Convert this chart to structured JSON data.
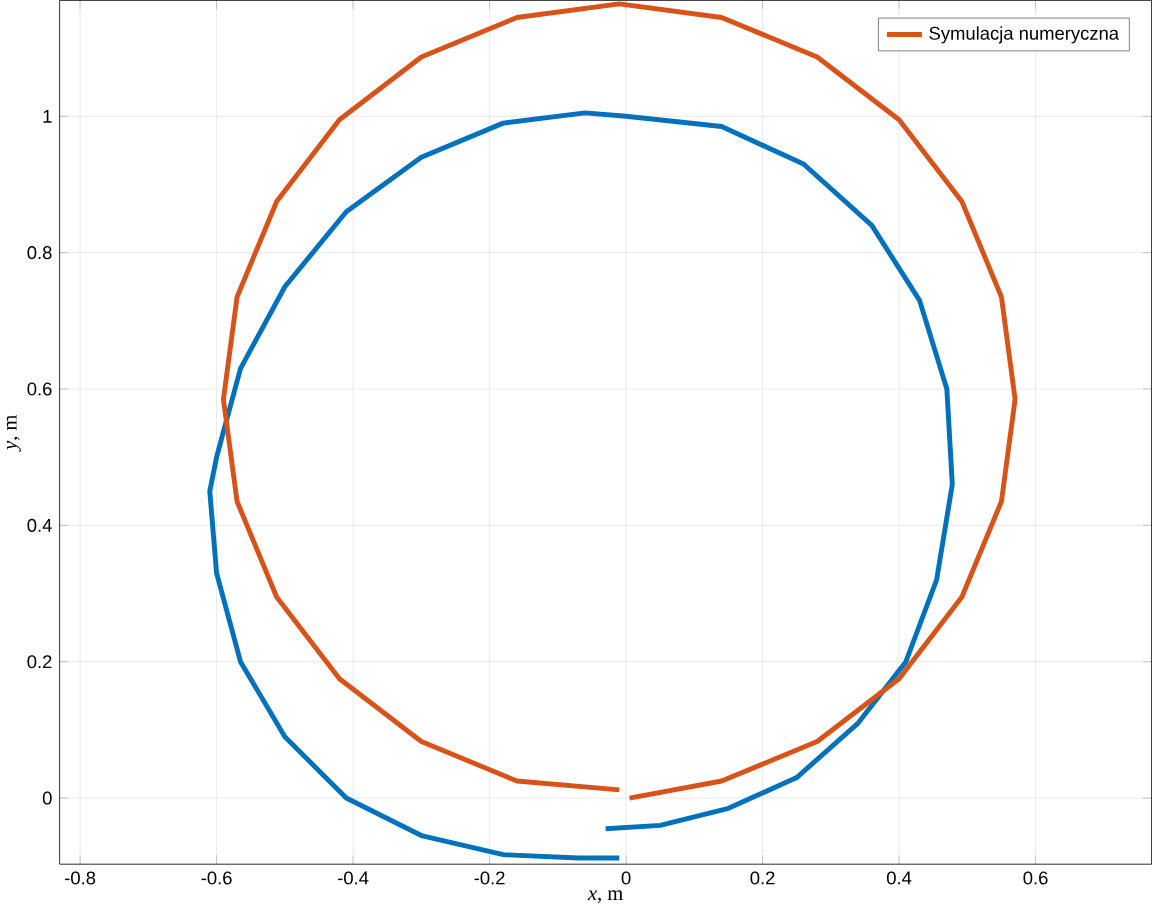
{
  "chart_data": {
    "type": "line",
    "xlabel": "*x*, m",
    "ylabel": "*y*, m",
    "xlim": [
      -0.83,
      0.77
    ],
    "ylim": [
      -0.097,
      1.17
    ],
    "xticks": [
      -0.8,
      -0.6,
      -0.4,
      -0.2,
      0,
      0.2,
      0.4,
      0.6
    ],
    "yticks": [
      0,
      0.2,
      0.4,
      0.6,
      0.8,
      1
    ],
    "grid": true,
    "legend": "top right",
    "line_style": "solid",
    "marker": "none",
    "series": [
      {
        "color": "#0072bd",
        "x": [
          -0.03,
          0.05,
          0.15,
          0.25,
          0.34,
          0.41,
          0.455,
          0.478,
          0.47,
          0.43,
          0.36,
          0.26,
          0.14,
          0.0,
          -0.06,
          -0.18,
          -0.3,
          -0.41,
          -0.5,
          -0.565,
          -0.6,
          -0.61,
          -0.6,
          -0.565,
          -0.5,
          -0.41,
          -0.3,
          -0.18,
          -0.07,
          -0.01
        ],
        "values": [
          -0.045,
          -0.04,
          -0.015,
          0.03,
          0.11,
          0.2,
          0.32,
          0.46,
          0.6,
          0.73,
          0.84,
          0.93,
          0.985,
          1.0,
          1.005,
          0.99,
          0.94,
          0.86,
          0.75,
          0.63,
          0.5,
          0.45,
          0.33,
          0.2,
          0.09,
          0.0,
          -0.055,
          -0.083,
          -0.088,
          -0.088
        ]
      },
      {
        "name": "Symulacja numeryczna",
        "color": "#d95319",
        "x": [
          0.005,
          0.14,
          0.28,
          0.4,
          0.492,
          0.55,
          0.57,
          0.55,
          0.492,
          0.4,
          0.28,
          0.14,
          -0.01,
          -0.16,
          -0.3,
          -0.42,
          -0.512,
          -0.57,
          -0.59,
          -0.57,
          -0.512,
          -0.42,
          -0.3,
          -0.16,
          -0.01
        ],
        "values": [
          0.0,
          0.025,
          0.083,
          0.175,
          0.295,
          0.435,
          0.585,
          0.735,
          0.875,
          0.995,
          1.087,
          1.145,
          1.165,
          1.145,
          1.087,
          0.995,
          0.875,
          0.735,
          0.585,
          0.435,
          0.295,
          0.175,
          0.083,
          0.025,
          0.012
        ]
      }
    ]
  }
}
